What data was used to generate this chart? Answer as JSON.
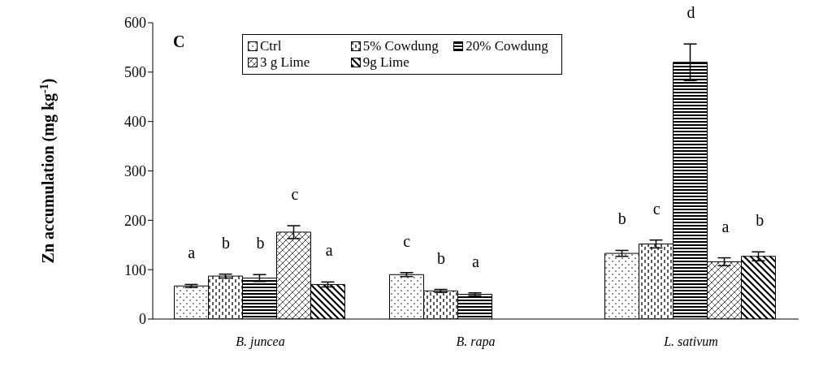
{
  "chart_data": {
    "type": "bar",
    "ylabel": "Zn accumulation (mg kg$^{-1}$)",
    "categories": [
      "B. juncea",
      "B. rapa",
      "L. sativum"
    ],
    "ylim": [
      0,
      600
    ],
    "yticks": [
      0,
      100,
      200,
      300,
      400,
      500,
      600
    ],
    "grid": false,
    "legend": "top",
    "series": [
      {
        "name": "Ctrl",
        "color": "#000000",
        "values": [
          67,
          90,
          133
        ],
        "errors": [
          3,
          4,
          6
        ]
      },
      {
        "name": "5% Cowdung",
        "color": "#000000",
        "values": [
          87,
          57,
          152
        ],
        "errors": [
          4,
          3,
          8
        ]
      },
      {
        "name": "20% Cowdung",
        "color": "#000000",
        "values": [
          83,
          50,
          520
        ],
        "errors": [
          7,
          3,
          37
        ]
      },
      {
        "name": "3 g Lime",
        "color": "#000000",
        "values": [
          176,
          null,
          116
        ],
        "errors": [
          13,
          null,
          8
        ]
      },
      {
        "name": "9g Lime",
        "color": "#000000",
        "values": [
          70,
          null,
          127
        ],
        "errors": [
          5,
          null,
          9
        ]
      }
    ],
    "annotations": [
      "C",
      "a",
      "b",
      "b",
      "c",
      "a",
      "c",
      "b",
      "a",
      "b",
      "c",
      "d",
      "a",
      "b"
    ]
  }
}
